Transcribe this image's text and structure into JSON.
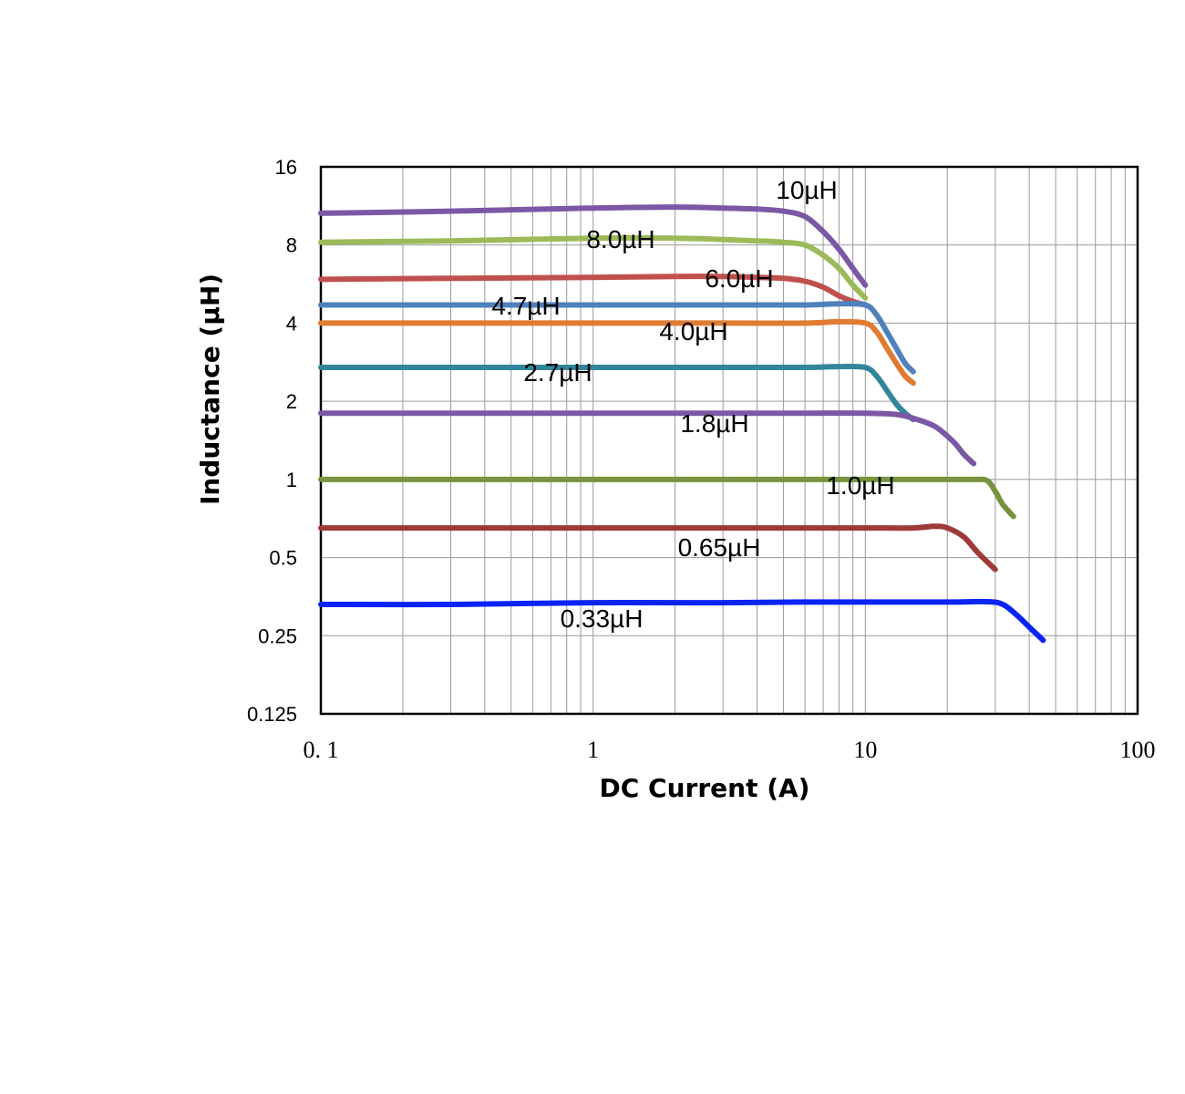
{
  "chart_data": {
    "type": "line",
    "xlabel": "DC Current (A)",
    "ylabel": "Inductance (µH)",
    "x_scale": "log",
    "y_scale": "log",
    "xlim": [
      0.1,
      100
    ],
    "ylim": [
      0.125,
      16
    ],
    "x_ticks": [
      "0. 1",
      "1",
      "10",
      "100"
    ],
    "y_ticks": [
      "16",
      "8",
      "4",
      "2",
      "1",
      "0.5",
      "0.25",
      "0.125"
    ],
    "grid": true,
    "series": [
      {
        "name": "10µH",
        "color": "#7b58a6",
        "x": [
          0.1,
          0.3,
          1,
          2,
          3,
          4,
          5,
          6,
          7,
          8,
          9,
          10
        ],
        "y": [
          10.6,
          10.8,
          11.1,
          11.2,
          11.1,
          11.0,
          10.8,
          10.3,
          9.0,
          7.7,
          6.5,
          5.6
        ]
      },
      {
        "name": "8.0µH",
        "color": "#9bbb59",
        "x": [
          0.1,
          0.3,
          1,
          2,
          3,
          4,
          5,
          6,
          7,
          8,
          9,
          10
        ],
        "y": [
          8.2,
          8.3,
          8.5,
          8.5,
          8.4,
          8.3,
          8.2,
          8.0,
          7.3,
          6.5,
          5.6,
          5.0
        ]
      },
      {
        "name": "6.0µH",
        "color": "#c0504d",
        "x": [
          0.1,
          0.3,
          1,
          2,
          3,
          4,
          5,
          6,
          7,
          8,
          9,
          10
        ],
        "y": [
          5.9,
          5.95,
          6.0,
          6.05,
          6.05,
          6.0,
          5.95,
          5.8,
          5.5,
          5.1,
          4.85,
          4.7
        ]
      },
      {
        "name": "4.7µH",
        "color": "#4f81bd",
        "x": [
          0.1,
          0.3,
          1,
          3,
          6,
          8,
          10,
          11,
          12,
          13,
          14,
          15
        ],
        "y": [
          4.7,
          4.7,
          4.7,
          4.7,
          4.7,
          4.75,
          4.7,
          4.3,
          3.7,
          3.2,
          2.8,
          2.6
        ]
      },
      {
        "name": "4.0µH",
        "color": "#e07b32",
        "x": [
          0.1,
          0.3,
          1,
          3,
          6,
          8,
          10,
          11,
          12,
          13,
          14,
          15
        ],
        "y": [
          4.0,
          4.0,
          4.0,
          4.0,
          4.0,
          4.05,
          4.0,
          3.7,
          3.2,
          2.8,
          2.5,
          2.35
        ]
      },
      {
        "name": "2.7µH",
        "color": "#31859c",
        "x": [
          0.1,
          0.3,
          1,
          3,
          6,
          8,
          10,
          11,
          12,
          13,
          14,
          15
        ],
        "y": [
          2.7,
          2.7,
          2.7,
          2.7,
          2.7,
          2.72,
          2.7,
          2.5,
          2.2,
          1.95,
          1.8,
          1.7
        ]
      },
      {
        "name": "1.8µH",
        "color": "#7b58a6",
        "x": [
          0.1,
          0.3,
          1,
          3,
          6,
          10,
          13,
          15,
          18,
          21,
          23,
          25
        ],
        "y": [
          1.8,
          1.8,
          1.8,
          1.8,
          1.8,
          1.8,
          1.78,
          1.72,
          1.6,
          1.4,
          1.25,
          1.15
        ]
      },
      {
        "name": "1.0µH",
        "color": "#77933c",
        "x": [
          0.1,
          0.3,
          1,
          3,
          6,
          10,
          20,
          25,
          28,
          30,
          32,
          35
        ],
        "y": [
          1.0,
          1.0,
          1.0,
          1.0,
          1.0,
          1.0,
          1.0,
          1.0,
          0.99,
          0.9,
          0.8,
          0.72
        ]
      },
      {
        "name": "0.65µH",
        "color": "#9e3a38",
        "x": [
          0.1,
          0.3,
          1,
          3,
          6,
          10,
          15,
          18,
          20,
          23,
          26,
          30
        ],
        "y": [
          0.65,
          0.65,
          0.65,
          0.65,
          0.65,
          0.65,
          0.65,
          0.66,
          0.65,
          0.6,
          0.52,
          0.45
        ]
      },
      {
        "name": "0.33µH",
        "color": "#0b24f5",
        "x": [
          0.1,
          0.3,
          1,
          3,
          6,
          10,
          20,
          28,
          32,
          36,
          40,
          45
        ],
        "y": [
          0.33,
          0.33,
          0.335,
          0.335,
          0.337,
          0.337,
          0.337,
          0.338,
          0.33,
          0.3,
          0.27,
          0.24
        ]
      }
    ]
  }
}
